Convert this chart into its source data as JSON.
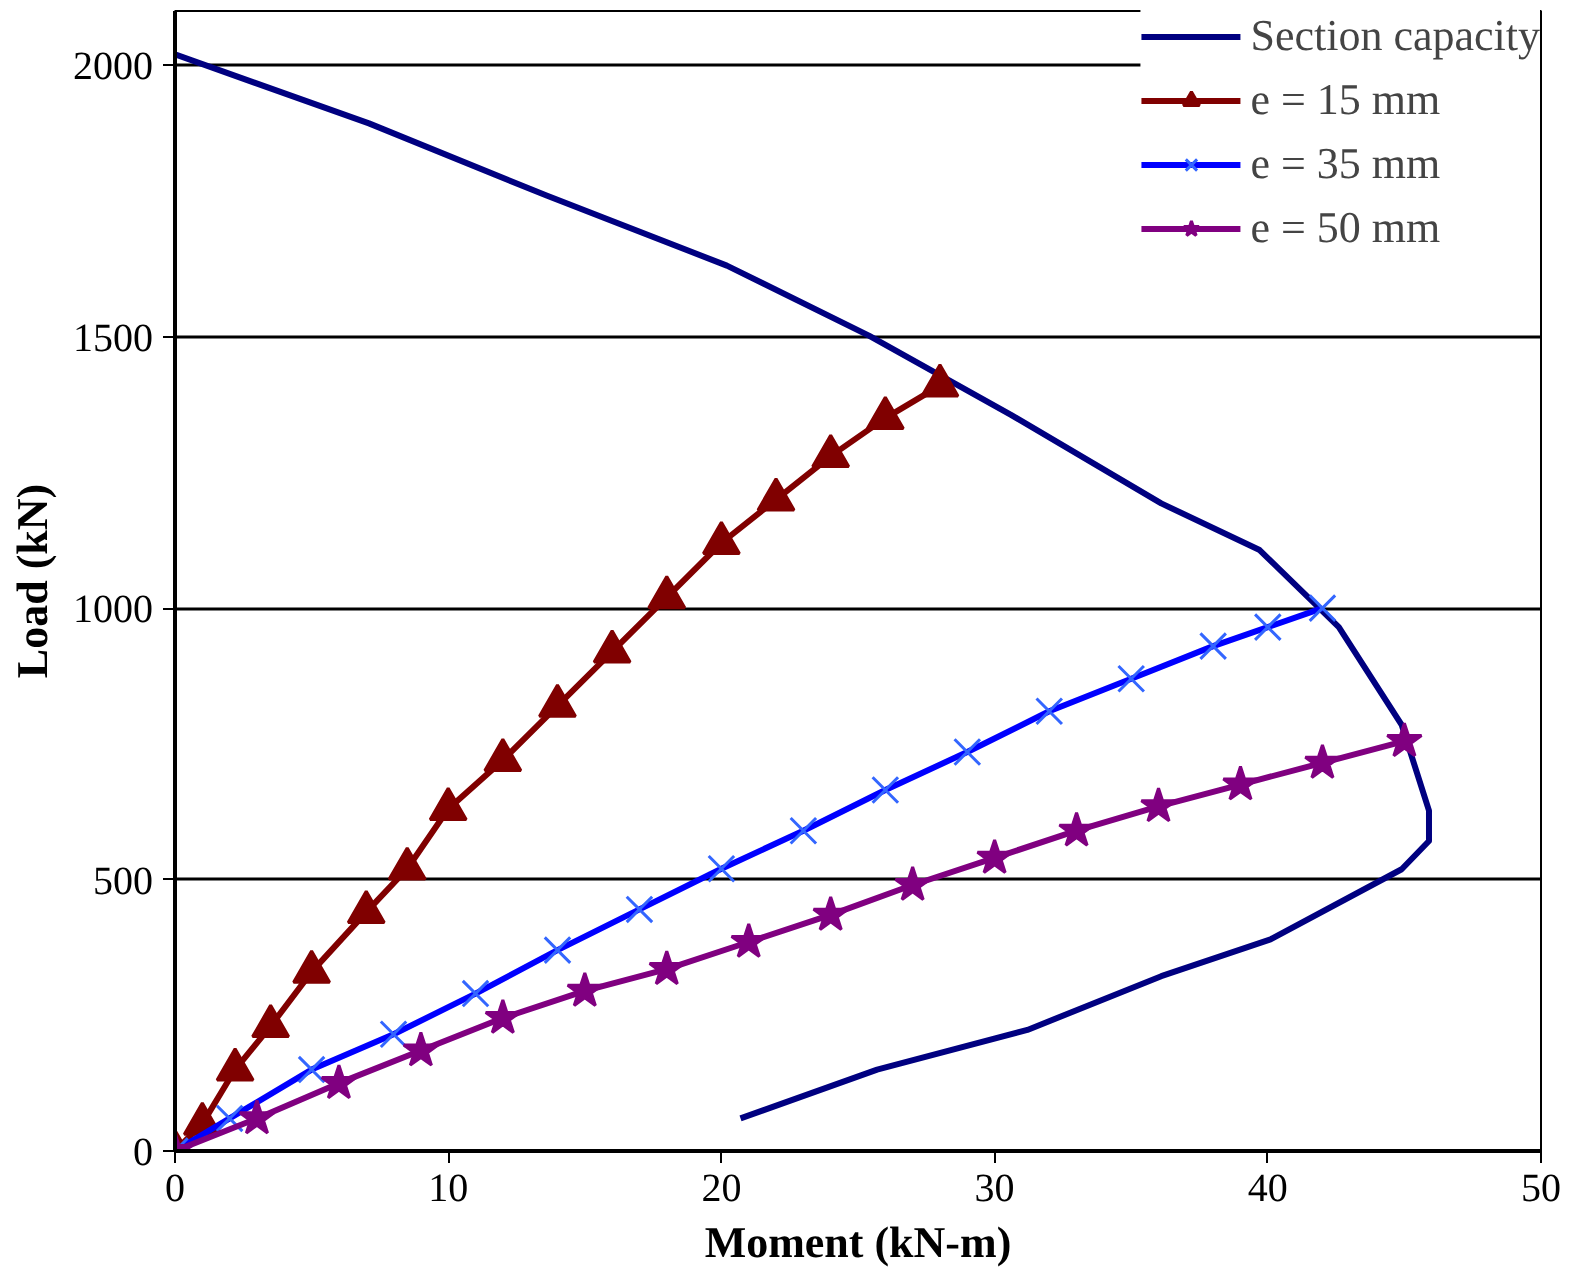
{
  "chart_data": {
    "type": "line",
    "xlabel": "Moment (kN-m)",
    "ylabel": "Load (kN)",
    "xlim": [
      0,
      50
    ],
    "ylim": [
      0,
      2100
    ],
    "xticks": [
      0,
      10,
      20,
      30,
      40,
      50
    ],
    "yticks": [
      0,
      500,
      1000,
      1500,
      2000
    ],
    "grid": "y",
    "legend": "top right",
    "series": [
      {
        "name": "Section capacity",
        "color": "#000080",
        "marker": "none",
        "x": [
          0,
          7.1,
          13.6,
          20.2,
          25.4,
          30.6,
          36.1,
          39.7,
          42.6,
          44.9,
          45.9,
          45.9,
          44.9,
          40.1,
          36.1,
          31.2,
          25.7,
          20.7
        ],
        "values": [
          2020,
          1893,
          1760,
          1631,
          1502,
          1356,
          1193,
          1107,
          965,
          785,
          627,
          571,
          519,
          390,
          322,
          223,
          150,
          60
        ]
      },
      {
        "name": "e = 15 mm",
        "color": "#800000",
        "marker": "triangle",
        "x": [
          0,
          1,
          2.2,
          3.5,
          5,
          7,
          8.5,
          10,
          12,
          14,
          16,
          18,
          20,
          22,
          24,
          26,
          28
        ],
        "values": [
          0,
          50,
          150,
          230,
          330,
          440,
          520,
          630,
          720,
          820,
          920,
          1020,
          1120,
          1200,
          1280,
          1350,
          1410
        ]
      },
      {
        "name": "e = 35 mm",
        "color": "#0000ff",
        "marker": "cross",
        "x": [
          0,
          2,
          5,
          8,
          11,
          14,
          17,
          20,
          23,
          26,
          29,
          32,
          35,
          38,
          40,
          42
        ],
        "values": [
          0,
          60,
          150,
          215,
          290,
          370,
          445,
          520,
          590,
          665,
          735,
          810,
          870,
          930,
          965,
          1000
        ]
      },
      {
        "name": "e = 50 mm",
        "color": "#800080",
        "marker": "star",
        "x": [
          0,
          3,
          6,
          9,
          12,
          15,
          18,
          21,
          24,
          27,
          30,
          33,
          36,
          39,
          42,
          45
        ],
        "values": [
          0,
          60,
          125,
          185,
          245,
          295,
          335,
          385,
          435,
          490,
          540,
          590,
          635,
          675,
          715,
          755
        ]
      }
    ]
  }
}
